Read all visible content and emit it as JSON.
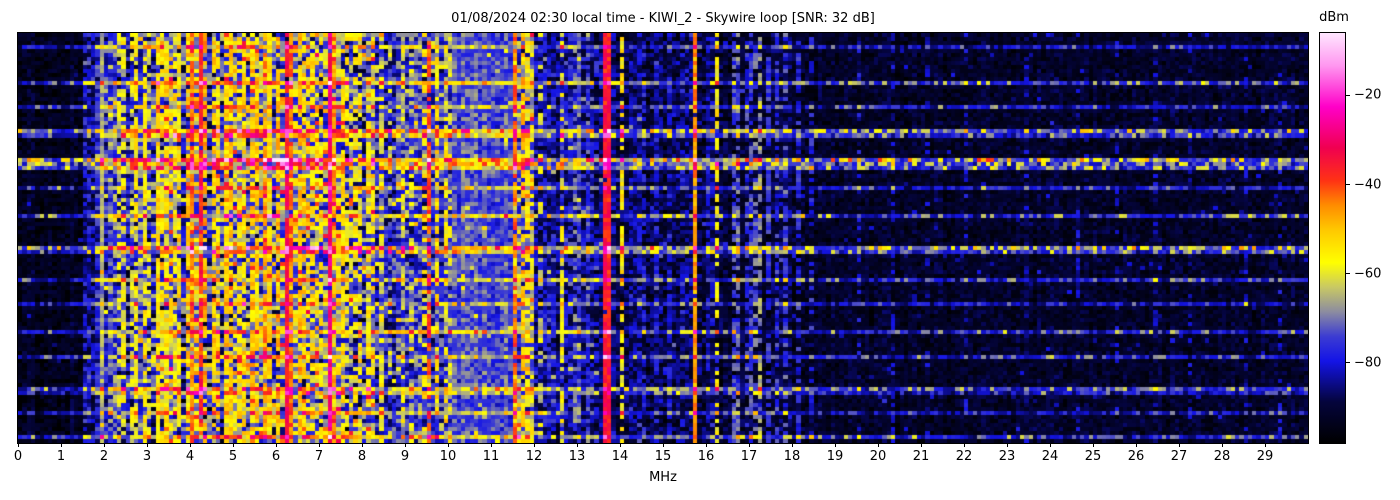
{
  "title": "01/08/2024 02:30 local time - KIWI_2 - Skywire loop [SNR: 32 dB]",
  "xlabel": "MHz",
  "x_ticks": [
    "0",
    "1",
    "2",
    "3",
    "4",
    "5",
    "6",
    "7",
    "8",
    "9",
    "10",
    "11",
    "12",
    "13",
    "14",
    "15",
    "16",
    "17",
    "18",
    "19",
    "20",
    "21",
    "22",
    "23",
    "24",
    "25",
    "26",
    "27",
    "28",
    "29"
  ],
  "colorbar": {
    "label": "dBm",
    "tick_labels": [
      "−20",
      "−40",
      "−60",
      "−80"
    ],
    "tick_values": [
      -20,
      -40,
      -60,
      -80
    ],
    "vmin": -98,
    "vmax": -6
  },
  "chart_data": {
    "type": "heatmap",
    "subtype": "spectrogram-waterfall",
    "title": "01/08/2024 02:30 local time - KIWI_2 - Skywire loop [SNR: 32 dB]",
    "xlabel": "MHz",
    "x_range": [
      0,
      30
    ],
    "x_tick_step": 1,
    "y_axis": "time (unlabeled waterfall rows, newest rows fill downward)",
    "value_label": "dBm",
    "value_range": [
      -98,
      -6
    ],
    "grid": {
      "cols": 300,
      "rows": 102
    },
    "noise_seed": 1234,
    "colormap_stops": [
      [
        0.0,
        "#000000"
      ],
      [
        0.1,
        "#04043c"
      ],
      [
        0.2,
        "#1414e6"
      ],
      [
        0.26,
        "#3c3cd2"
      ],
      [
        0.32,
        "#8c8ca0"
      ],
      [
        0.38,
        "#c8c864"
      ],
      [
        0.44,
        "#ffff00"
      ],
      [
        0.52,
        "#ffc800"
      ],
      [
        0.58,
        "#ff8c00"
      ],
      [
        0.64,
        "#ff3214"
      ],
      [
        0.72,
        "#f00050"
      ],
      [
        0.82,
        "#ff00c8"
      ],
      [
        0.92,
        "#ff96f0"
      ],
      [
        1.0,
        "#ffe6ff"
      ]
    ],
    "bands_format": "[f_start_MHz, f_end_MHz, base_level_0to1, variance, column_variance, spike_prob, spike_amp]",
    "bands": [
      [
        0.0,
        1.5,
        0.05,
        0.05,
        0.02,
        0.02,
        0.08
      ],
      [
        1.5,
        1.95,
        0.16,
        0.1,
        0.04,
        0.05,
        0.08
      ],
      [
        1.95,
        3.1,
        0.2,
        0.13,
        0.07,
        0.12,
        0.14
      ],
      [
        3.1,
        4.7,
        0.27,
        0.18,
        0.1,
        0.22,
        0.16
      ],
      [
        4.7,
        6.1,
        0.3,
        0.18,
        0.1,
        0.25,
        0.16
      ],
      [
        6.1,
        8.3,
        0.27,
        0.18,
        0.1,
        0.2,
        0.16
      ],
      [
        8.3,
        10.1,
        0.22,
        0.12,
        0.06,
        0.1,
        0.14
      ],
      [
        10.1,
        11.5,
        0.26,
        0.07,
        0.03,
        0.04,
        0.1
      ],
      [
        11.5,
        12.0,
        0.3,
        0.15,
        0.08,
        0.18,
        0.15
      ],
      [
        12.0,
        13.5,
        0.16,
        0.1,
        0.05,
        0.06,
        0.12
      ],
      [
        13.5,
        16.4,
        0.11,
        0.08,
        0.04,
        0.04,
        0.1
      ],
      [
        16.4,
        18.6,
        0.08,
        0.06,
        0.03,
        0.03,
        0.1
      ],
      [
        18.6,
        30.0,
        0.065,
        0.05,
        0.015,
        0.02,
        0.08
      ]
    ],
    "carriers_format": "[freq_MHz, level_0to1, persistence_0to1, width_cols]",
    "carriers": [
      [
        1.97,
        0.33,
        1.0,
        1
      ],
      [
        2.3,
        0.4,
        0.55,
        1
      ],
      [
        2.45,
        0.44,
        0.6,
        1
      ],
      [
        2.6,
        0.42,
        0.5,
        1
      ],
      [
        2.75,
        0.45,
        0.65,
        1
      ],
      [
        2.9,
        0.45,
        0.7,
        1
      ],
      [
        3.05,
        0.42,
        0.5,
        1
      ],
      [
        3.2,
        0.48,
        0.75,
        1
      ],
      [
        3.3,
        0.45,
        0.6,
        1
      ],
      [
        3.45,
        0.46,
        0.65,
        1
      ],
      [
        3.6,
        0.42,
        0.5,
        1
      ],
      [
        3.75,
        0.46,
        0.6,
        1
      ],
      [
        3.9,
        0.5,
        0.65,
        1
      ],
      [
        4.05,
        0.6,
        0.8,
        1
      ],
      [
        4.2,
        0.66,
        0.9,
        2
      ],
      [
        4.35,
        0.55,
        0.7,
        1
      ],
      [
        4.5,
        0.5,
        0.65,
        1
      ],
      [
        4.65,
        0.46,
        0.6,
        1
      ],
      [
        4.8,
        0.48,
        0.65,
        1
      ],
      [
        4.95,
        0.5,
        0.7,
        1
      ],
      [
        5.1,
        0.46,
        0.6,
        1
      ],
      [
        5.25,
        0.48,
        0.6,
        1
      ],
      [
        5.4,
        0.5,
        0.65,
        1
      ],
      [
        5.55,
        0.5,
        0.6,
        1
      ],
      [
        5.7,
        0.55,
        0.7,
        1
      ],
      [
        5.85,
        0.48,
        0.6,
        1
      ],
      [
        6.0,
        0.52,
        0.65,
        1
      ],
      [
        6.2,
        0.7,
        0.97,
        2
      ],
      [
        6.35,
        0.6,
        0.8,
        1
      ],
      [
        6.5,
        0.52,
        0.65,
        1
      ],
      [
        6.65,
        0.5,
        0.6,
        1
      ],
      [
        6.8,
        0.48,
        0.55,
        1
      ],
      [
        7.0,
        0.46,
        0.55,
        1
      ],
      [
        7.2,
        0.75,
        0.97,
        2
      ],
      [
        7.35,
        0.55,
        0.7,
        1
      ],
      [
        7.5,
        0.48,
        0.6,
        1
      ],
      [
        7.65,
        0.46,
        0.5,
        1
      ],
      [
        7.8,
        0.46,
        0.5,
        1
      ],
      [
        7.95,
        0.44,
        0.45,
        1
      ],
      [
        8.1,
        0.42,
        0.4,
        1
      ],
      [
        8.45,
        0.44,
        0.45,
        1
      ],
      [
        8.6,
        0.4,
        0.35,
        1
      ],
      [
        8.9,
        0.42,
        0.4,
        1
      ],
      [
        9.1,
        0.4,
        0.35,
        1
      ],
      [
        9.4,
        0.46,
        0.5,
        1
      ],
      [
        9.55,
        0.62,
        0.75,
        1
      ],
      [
        9.7,
        0.48,
        0.55,
        1
      ],
      [
        9.9,
        0.44,
        0.45,
        1
      ],
      [
        10.05,
        0.42,
        0.4,
        1
      ],
      [
        11.55,
        0.6,
        0.75,
        1
      ],
      [
        11.7,
        0.52,
        0.65,
        1
      ],
      [
        11.85,
        0.46,
        0.6,
        1
      ],
      [
        12.1,
        0.4,
        0.3,
        1
      ],
      [
        12.65,
        0.44,
        0.55,
        1
      ],
      [
        12.9,
        0.3,
        0.45,
        1
      ],
      [
        13.05,
        0.28,
        0.5,
        1
      ],
      [
        13.2,
        0.26,
        0.45,
        1
      ],
      [
        13.65,
        0.68,
        0.97,
        2
      ],
      [
        14.05,
        0.46,
        0.7,
        1
      ],
      [
        14.5,
        0.22,
        0.45,
        1
      ],
      [
        14.8,
        0.2,
        0.4,
        1
      ],
      [
        15.1,
        0.2,
        0.4,
        1
      ],
      [
        15.4,
        0.2,
        0.35,
        1
      ],
      [
        15.75,
        0.56,
        0.97,
        1
      ],
      [
        16.2,
        0.46,
        0.6,
        1
      ],
      [
        16.6,
        0.25,
        0.7,
        1
      ],
      [
        16.75,
        0.3,
        0.6,
        1
      ],
      [
        16.9,
        0.24,
        0.5,
        1
      ],
      [
        17.0,
        0.25,
        0.7,
        1
      ],
      [
        17.15,
        0.28,
        0.5,
        1
      ],
      [
        17.25,
        0.34,
        0.5,
        1
      ],
      [
        17.45,
        0.25,
        0.6,
        1
      ],
      [
        17.6,
        0.24,
        0.5,
        1
      ],
      [
        17.8,
        0.26,
        0.6,
        1
      ],
      [
        18.1,
        0.22,
        0.5,
        1
      ],
      [
        18.4,
        0.22,
        0.4,
        1
      ],
      [
        19.5,
        0.18,
        0.4,
        1
      ],
      [
        20.3,
        0.17,
        0.35,
        1
      ],
      [
        21.1,
        0.16,
        0.3,
        1
      ],
      [
        22.0,
        0.17,
        0.35,
        1
      ],
      [
        23.4,
        0.16,
        0.3,
        1
      ],
      [
        24.6,
        0.17,
        0.3,
        1
      ],
      [
        25.5,
        0.16,
        0.3,
        1
      ],
      [
        26.4,
        0.16,
        0.3,
        1
      ],
      [
        27.2,
        0.16,
        0.3,
        1
      ],
      [
        28.5,
        0.16,
        0.3,
        1
      ],
      [
        29.3,
        0.17,
        0.35,
        1
      ]
    ],
    "events_format": "[time_fraction_top0, strength_0to1, row_span] — broadband horizontal streaks",
    "events": [
      [
        0.03,
        0.35,
        1
      ],
      [
        0.115,
        0.55,
        1
      ],
      [
        0.175,
        0.4,
        1
      ],
      [
        0.235,
        0.75,
        2
      ],
      [
        0.305,
        0.9,
        3
      ],
      [
        0.38,
        0.4,
        1
      ],
      [
        0.45,
        0.55,
        1
      ],
      [
        0.525,
        0.8,
        2
      ],
      [
        0.6,
        0.45,
        1
      ],
      [
        0.665,
        0.35,
        1
      ],
      [
        0.73,
        0.5,
        1
      ],
      [
        0.795,
        0.45,
        1
      ],
      [
        0.87,
        0.55,
        2
      ],
      [
        0.935,
        0.35,
        1
      ],
      [
        0.99,
        0.5,
        1
      ]
    ]
  }
}
